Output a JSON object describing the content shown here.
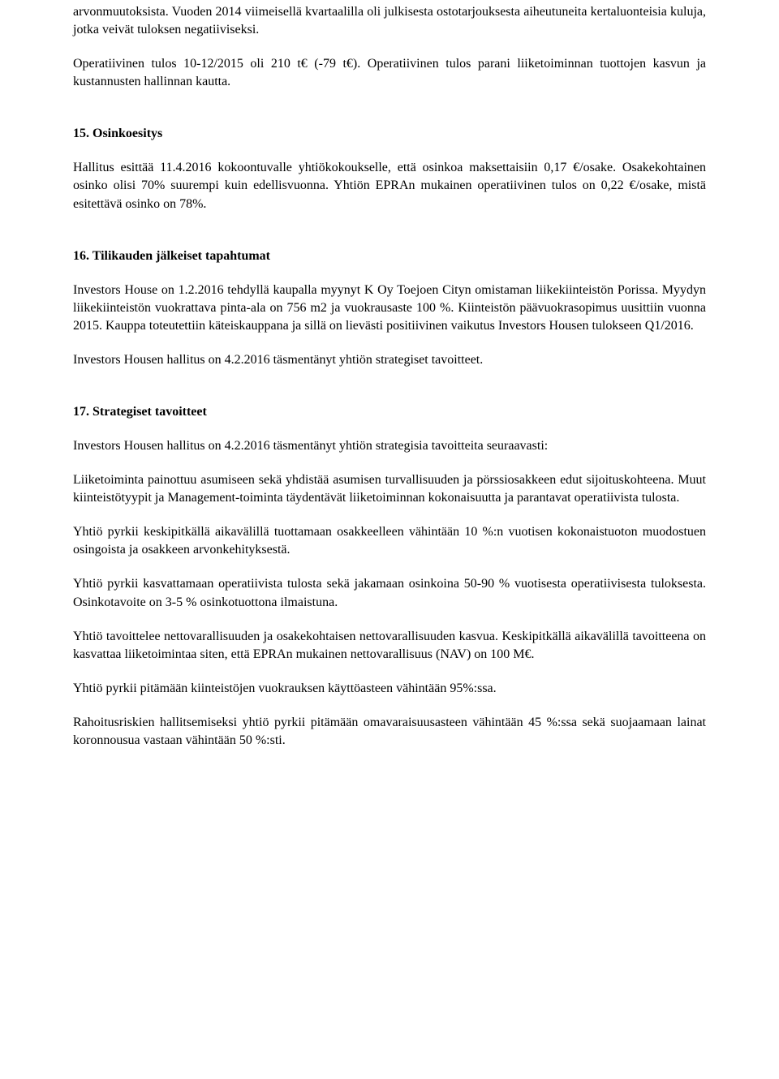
{
  "text_color": "#000000",
  "background_color": "#ffffff",
  "font_family": "Palatino Linotype",
  "base_font_size": 16,
  "p1": "arvonmuutoksista. Vuoden 2014 viimeisellä kvartaalilla oli julkisesta ostotarjouksesta aiheutuneita kertaluonteisia kuluja, jotka veivät tuloksen negatiiviseksi.",
  "p2": "Operatiivinen tulos 10-12/2015 oli 210 t€ (-79 t€). Operatiivinen tulos parani liiketoiminnan tuottojen kasvun ja kustannusten hallinnan kautta.",
  "s15_title": "15. Osinkoesitys",
  "s15_p1": "Hallitus esittää 11.4.2016 kokoontuvalle yhtiökokoukselle, että osinkoa maksettaisiin 0,17 €/osake. Osakekohtainen osinko olisi 70% suurempi kuin edellisvuonna. Yhtiön EPRAn mukainen operatiivinen tulos on 0,22 €/osake, mistä esitettävä osinko on 78%.",
  "s16_title": "16. Tilikauden jälkeiset tapahtumat",
  "s16_p1": "Investors House on 1.2.2016 tehdyllä kaupalla myynyt K Oy Toejoen Cityn omistaman liikekiinteistön Porissa. Myydyn liikekiinteistön vuokrattava pinta-ala on 756 m2 ja vuokrausaste 100 %. Kiinteistön päävuokrasopimus uusittiin vuonna 2015. Kauppa toteutettiin käteiskauppana ja sillä on lievästi positiivinen vaikutus Investors Housen tulokseen Q1/2016.",
  "s16_p2": "Investors Housen hallitus on 4.2.2016 täsmentänyt yhtiön strategiset tavoitteet.",
  "s17_title": "17. Strategiset tavoitteet",
  "s17_p1": "Investors Housen hallitus on 4.2.2016 täsmentänyt yhtiön strategisia tavoitteita seuraavasti:",
  "s17_p2": "Liiketoiminta painottuu asumiseen sekä yhdistää asumisen turvallisuuden ja pörssiosakkeen edut sijoituskohteena. Muut kiinteistötyypit ja Management-toiminta täydentävät liiketoiminnan kokonaisuutta ja parantavat operatiivista tulosta.",
  "s17_p3": "Yhtiö pyrkii keskipitkällä aikavälillä tuottamaan osakkeelleen vähintään 10 %:n vuotisen kokonaistuoton muodostuen osingoista ja osakkeen arvonkehityksestä.",
  "s17_p4": "Yhtiö pyrkii kasvattamaan operatiivista tulosta sekä jakamaan osinkoina 50-90 % vuotisesta operatiivisesta tuloksesta. Osinkotavoite on 3-5 % osinkotuottona ilmaistuna.",
  "s17_p5": "Yhtiö tavoittelee nettovarallisuuden ja osakekohtaisen nettovarallisuuden kasvua. Keskipitkällä aikavälillä tavoitteena on kasvattaa liiketoimintaa siten, että EPRAn mukainen nettovarallisuus (NAV) on 100 M€.",
  "s17_p6": "Yhtiö pyrkii pitämään kiinteistöjen vuokrauksen käyttöasteen vähintään 95%:ssa.",
  "s17_p7": "Rahoitusriskien hallitsemiseksi yhtiö pyrkii pitämään omavaraisuusasteen vähintään 45 %:ssa sekä suojaamaan lainat koronnousua vastaan vähintään 50 %:sti."
}
